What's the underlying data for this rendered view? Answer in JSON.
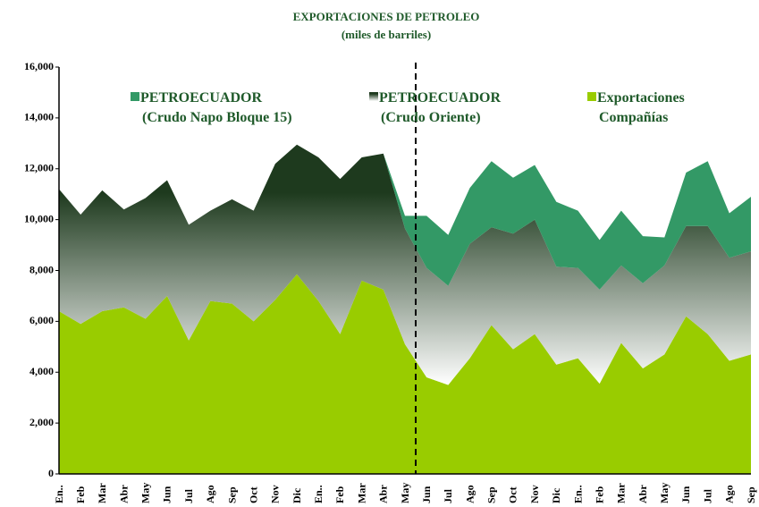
{
  "chart_data": {
    "type": "stacked_area",
    "title": "EXPORTACIONES DE PETROLEO",
    "subtitle": "(miles de barriles)",
    "categories": [
      "En..",
      "Feb",
      "Mar",
      "Abr",
      "May",
      "Jun",
      "Jul",
      "Ago",
      "Sep",
      "Oct",
      "Nov",
      "Dic",
      "En..",
      "Feb",
      "Mar",
      "Abr",
      "May",
      "Jun",
      "Jul",
      "Ago",
      "Sep",
      "Oct",
      "Nov",
      "Dic",
      "En..",
      "Feb",
      "Mar",
      "Abr",
      "May",
      "Jun",
      "Jul",
      "Ago",
      "Sep"
    ],
    "series": [
      {
        "name": "PETROECUADOR (Crudo Napo Bloque 15)",
        "color": "#339966",
        "values": [
          0,
          0,
          0,
          0,
          0,
          0,
          0,
          0,
          0,
          0,
          0,
          0,
          0,
          0,
          0,
          0,
          500,
          2050,
          2000,
          2200,
          2600,
          2200,
          2150,
          2550,
          2250,
          1950,
          2150,
          1850,
          1100,
          2100,
          2550,
          1750,
          2150
        ]
      },
      {
        "name": "PETROECUADOR (Crudo Oriente)",
        "color": "#1e3a1e",
        "values": [
          4800,
          4300,
          4750,
          3850,
          4750,
          4550,
          4550,
          3550,
          4100,
          4350,
          5350,
          5100,
          5650,
          6100,
          4850,
          5350,
          4550,
          4300,
          3900,
          4500,
          3850,
          4550,
          4500,
          3850,
          3550,
          3700,
          3050,
          3350,
          3500,
          3550,
          4250,
          4050,
          4050
        ]
      },
      {
        "name": "Exportaciones Compañías",
        "color": "#99cc00",
        "values": [
          6400,
          5900,
          6400,
          6550,
          6100,
          7000,
          5250,
          6800,
          6700,
          6000,
          6850,
          7850,
          6800,
          5500,
          7600,
          7250,
          5100,
          3800,
          3500,
          4550,
          5850,
          4900,
          5500,
          4300,
          4550,
          3550,
          5150,
          4150,
          4700,
          6200,
          5500,
          4450,
          4700
        ]
      }
    ],
    "ylim": [
      0,
      16000
    ],
    "yticks": [
      0,
      {
        "value": 2000,
        "label": "2,000"
      },
      {
        "value": 4000,
        "label": "4,000"
      },
      {
        "value": 6000,
        "label": "6,000"
      },
      {
        "value": 8000,
        "label": "8,000"
      },
      {
        "value": 10000,
        "label": "10,000"
      },
      {
        "value": 12000,
        "label": "12,000"
      },
      {
        "value": 14000,
        "label": "14,000"
      },
      {
        "value": 16000,
        "label": "16,000"
      }
    ],
    "legend": "top"
  }
}
